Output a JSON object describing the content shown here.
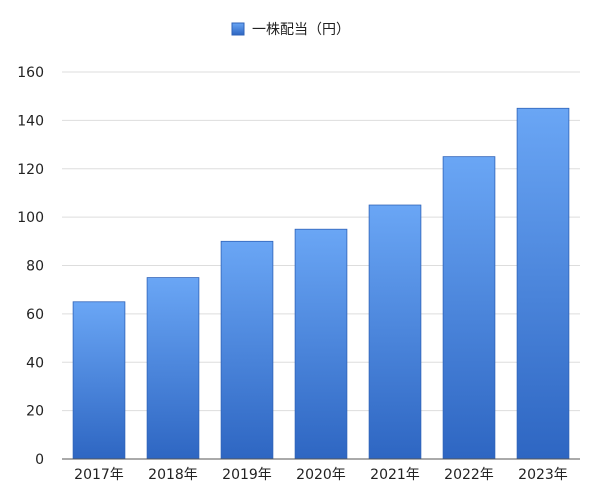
{
  "chart_data": {
    "type": "bar",
    "categories": [
      "2017年",
      "2018年",
      "2019年",
      "2020年",
      "2021年",
      "2022年",
      "2023年"
    ],
    "series": [
      {
        "name": "一株配当（円）",
        "values": [
          65,
          75,
          90,
          95,
          105,
          125,
          145
        ]
      }
    ],
    "title": "",
    "xlabel": "",
    "ylabel": "",
    "ylim": [
      0,
      160
    ],
    "yticks": [
      0,
      20,
      40,
      60,
      80,
      100,
      120,
      140,
      160
    ],
    "grid": true,
    "legend_position": "top-center",
    "colors": {
      "bar_top": "#6aa6f5",
      "bar_bottom": "#2e66c2",
      "bar_stroke": "#2f63b8",
      "grid": "#dddddd",
      "axis": "#555555"
    }
  }
}
